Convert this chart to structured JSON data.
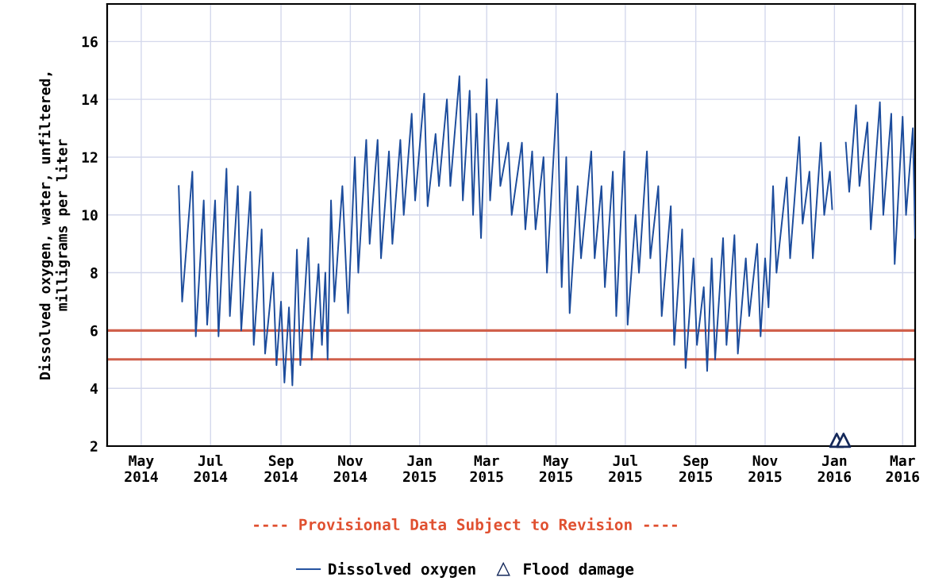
{
  "chart_data": {
    "type": "line",
    "ylabel": "Dissolved oxygen, water, unfiltered,\nmilligrams per liter",
    "xlim": [
      "2014-04-01",
      "2016-03-12"
    ],
    "ylim": [
      2,
      17.3
    ],
    "xticks": [
      {
        "value": "2014-05-01",
        "label": "May\n2014"
      },
      {
        "value": "2014-07-01",
        "label": "Jul\n2014"
      },
      {
        "value": "2014-09-01",
        "label": "Sep\n2014"
      },
      {
        "value": "2014-11-01",
        "label": "Nov\n2014"
      },
      {
        "value": "2015-01-01",
        "label": "Jan\n2015"
      },
      {
        "value": "2015-03-01",
        "label": "Mar\n2015"
      },
      {
        "value": "2015-05-01",
        "label": "May\n2015"
      },
      {
        "value": "2015-07-01",
        "label": "Jul\n2015"
      },
      {
        "value": "2015-09-01",
        "label": "Sep\n2015"
      },
      {
        "value": "2015-11-01",
        "label": "Nov\n2015"
      },
      {
        "value": "2016-01-01",
        "label": "Jan\n2016"
      },
      {
        "value": "2016-03-01",
        "label": "Mar\n2016"
      }
    ],
    "yticks": [
      2,
      4,
      6,
      8,
      10,
      12,
      14,
      16
    ],
    "grid": true,
    "legend": "bottom",
    "ref_lines": [
      {
        "axis": "y",
        "value": 6,
        "color": "#d0604c"
      },
      {
        "axis": "y",
        "value": 5,
        "color": "#d0604c"
      }
    ],
    "annotations": [
      "---- Provisional Data Subject to Revision ----"
    ],
    "series": [
      {
        "name": "Dissolved oxygen",
        "color": "#1c4c9c",
        "x": [
          "2014-06-03",
          "2014-06-06",
          "2014-06-15",
          "2014-06-18",
          "2014-06-25",
          "2014-06-28",
          "2014-07-05",
          "2014-07-08",
          "2014-07-15",
          "2014-07-18",
          "2014-07-25",
          "2014-07-28",
          "2014-08-05",
          "2014-08-08",
          "2014-08-15",
          "2014-08-18",
          "2014-08-25",
          "2014-08-28",
          "2014-09-01",
          "2014-09-04",
          "2014-09-08",
          "2014-09-11",
          "2014-09-15",
          "2014-09-18",
          "2014-09-25",
          "2014-09-28",
          "2014-10-04",
          "2014-10-07",
          "2014-10-10",
          "2014-10-12",
          "2014-10-15",
          "2014-10-18",
          "2014-10-25",
          "2014-10-30",
          "2014-11-05",
          "2014-11-08",
          "2014-11-15",
          "2014-11-18",
          "2014-11-25",
          "2014-11-28",
          "2014-12-05",
          "2014-12-08",
          "2014-12-15",
          "2014-12-18",
          "2014-12-25",
          "2014-12-28",
          "2015-01-05",
          "2015-01-08",
          "2015-01-15",
          "2015-01-18",
          "2015-01-25",
          "2015-01-28",
          "2015-02-05",
          "2015-02-08",
          "2015-02-14",
          "2015-02-17",
          "2015-02-20",
          "2015-02-24",
          "2015-03-01",
          "2015-03-04",
          "2015-03-10",
          "2015-03-13",
          "2015-03-20",
          "2015-03-23",
          "2015-04-01",
          "2015-04-04",
          "2015-04-10",
          "2015-04-13",
          "2015-04-20",
          "2015-04-23",
          "2015-05-02",
          "2015-05-06",
          "2015-05-10",
          "2015-05-13",
          "2015-05-20",
          "2015-05-23",
          "2015-06-01",
          "2015-06-04",
          "2015-06-10",
          "2015-06-13",
          "2015-06-20",
          "2015-06-23",
          "2015-06-30",
          "2015-07-03",
          "2015-07-10",
          "2015-07-13",
          "2015-07-20",
          "2015-07-23",
          "2015-07-30",
          "2015-08-02",
          "2015-08-10",
          "2015-08-13",
          "2015-08-20",
          "2015-08-23",
          "2015-08-30",
          "2015-09-02",
          "2015-09-08",
          "2015-09-11",
          "2015-09-15",
          "2015-09-18",
          "2015-09-25",
          "2015-09-28",
          "2015-10-05",
          "2015-10-08",
          "2015-10-15",
          "2015-10-18",
          "2015-10-25",
          "2015-10-28",
          "2015-11-01",
          "2015-11-04",
          "2015-11-08",
          "2015-11-11",
          "2015-11-20",
          "2015-11-23",
          "2015-12-01",
          "2015-12-04",
          "2015-12-10",
          "2015-12-13",
          "2015-12-20",
          "2015-12-23",
          "2015-12-28",
          "2015-12-30",
          "2016-01-05",
          "2016-01-11",
          "2016-01-14",
          "2016-01-20",
          "2016-01-23",
          "2016-01-30",
          "2016-02-02",
          "2016-02-10",
          "2016-02-13",
          "2016-02-20",
          "2016-02-23",
          "2016-03-01",
          "2016-03-04",
          "2016-03-10",
          "2016-03-12"
        ],
        "values": [
          11.0,
          7.0,
          11.5,
          5.8,
          10.5,
          6.2,
          10.5,
          5.8,
          11.6,
          6.5,
          11.0,
          6.0,
          10.8,
          5.5,
          9.5,
          5.2,
          8.0,
          4.8,
          7.0,
          4.2,
          6.8,
          4.1,
          8.8,
          4.8,
          9.2,
          5.0,
          8.3,
          5.5,
          8.0,
          5.0,
          10.5,
          7.0,
          11.0,
          6.6,
          12.0,
          8.0,
          12.6,
          9.0,
          12.6,
          8.5,
          12.2,
          9.0,
          12.6,
          10.0,
          13.5,
          10.5,
          14.2,
          10.3,
          12.8,
          11.0,
          14.0,
          11.0,
          14.8,
          10.5,
          14.3,
          10.0,
          13.5,
          9.2,
          14.7,
          10.5,
          14.0,
          11.0,
          12.5,
          10.0,
          12.5,
          9.5,
          12.2,
          9.5,
          12.0,
          8.0,
          14.2,
          7.5,
          12.0,
          6.6,
          11.0,
          8.5,
          12.2,
          8.5,
          11.0,
          7.5,
          11.5,
          6.5,
          12.2,
          6.2,
          10.0,
          8.0,
          12.2,
          8.5,
          11.0,
          6.5,
          10.3,
          5.5,
          9.5,
          4.7,
          8.5,
          5.5,
          7.5,
          4.6,
          8.5,
          5.0,
          9.2,
          5.5,
          9.3,
          5.2,
          8.5,
          6.5,
          9.0,
          5.8,
          8.5,
          6.8,
          11.0,
          8.0,
          11.3,
          8.5,
          12.7,
          9.7,
          11.5,
          8.5,
          12.5,
          10.0,
          11.5,
          10.2,
          null,
          12.5,
          10.8,
          13.8,
          11.0,
          13.2,
          9.5,
          13.9,
          10.0,
          13.5,
          8.3,
          13.4,
          10.0,
          13.0,
          9.2
        ]
      },
      {
        "name": "Flood damage",
        "type": "scatter",
        "marker": "triangle",
        "color": "#14285a",
        "x": [
          "2016-01-03",
          "2016-01-09"
        ],
        "values": [
          2.2,
          2.2
        ]
      }
    ]
  }
}
